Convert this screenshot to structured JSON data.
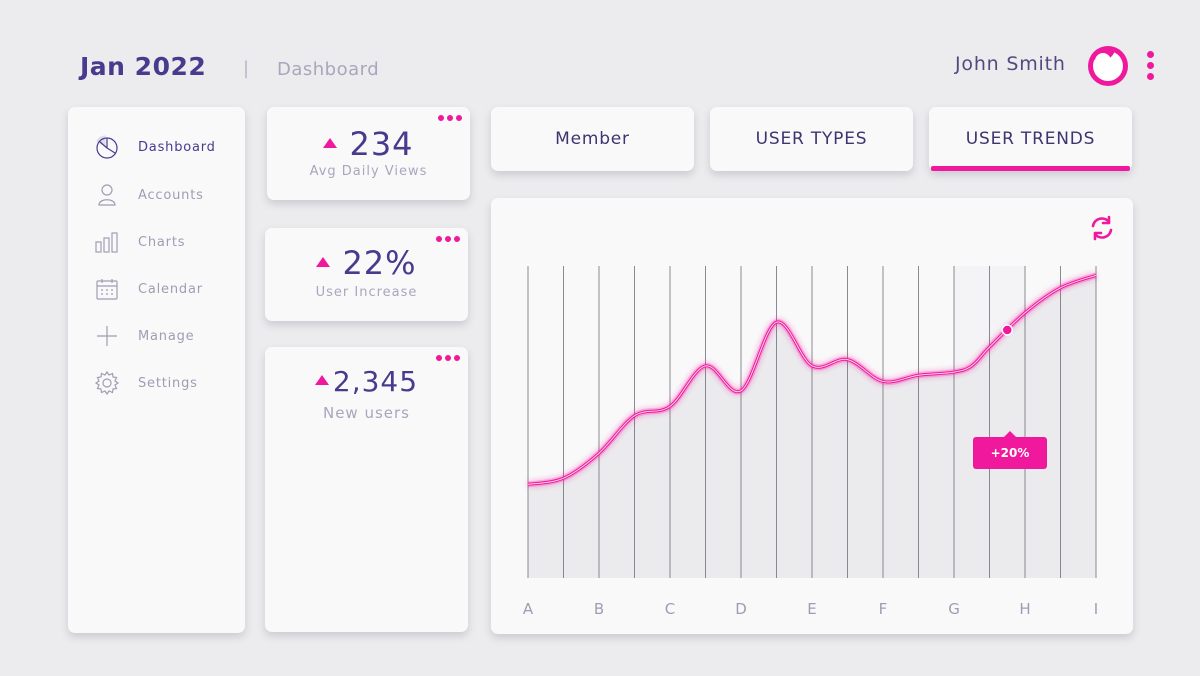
{
  "header": {
    "title": "Jan 2022",
    "separator": "|",
    "page": "Dashboard",
    "user_name": "John Smith"
  },
  "sidebar": {
    "items": [
      {
        "label": "Dashboard",
        "icon": "pie-chart-icon",
        "active": true
      },
      {
        "label": "Accounts",
        "icon": "user-icon",
        "active": false
      },
      {
        "label": "Charts",
        "icon": "bar-chart-icon",
        "active": false
      },
      {
        "label": "Calendar",
        "icon": "calendar-icon",
        "active": false
      },
      {
        "label": "Manage",
        "icon": "plus-icon",
        "active": false
      },
      {
        "label": "Settings",
        "icon": "gear-icon",
        "active": false
      }
    ]
  },
  "stats": [
    {
      "value": "234",
      "label": "Avg Daily Views",
      "trend": "up"
    },
    {
      "value": "22%",
      "label": "User Increase",
      "trend": "up"
    },
    {
      "value": "2,345",
      "label": "New users",
      "trend": "up"
    }
  ],
  "tabs": [
    {
      "label": "Member",
      "active": false
    },
    {
      "label": "USER TYPES",
      "active": false
    },
    {
      "label": "USER TRENDS",
      "active": true
    }
  ],
  "colors": {
    "accent": "#f0189c",
    "primary_text": "#4a3a8e",
    "muted_text": "#a9a6bd",
    "background": "#ececee",
    "card": "#f9f9fa"
  },
  "chart_data": {
    "type": "line",
    "title": "",
    "categories": [
      "A",
      "B",
      "C",
      "D",
      "E",
      "F",
      "G",
      "H",
      "I"
    ],
    "x": [
      0,
      0.5,
      1,
      1.5,
      2,
      2.5,
      3,
      3.5,
      4,
      4.5,
      5,
      5.5,
      6,
      6.25,
      6.5,
      7,
      7.5,
      8
    ],
    "values": [
      30,
      32,
      40,
      52,
      55,
      68,
      60,
      82,
      68,
      70,
      63,
      65,
      66,
      68,
      74,
      85,
      93,
      97
    ],
    "ylim": [
      0,
      100
    ],
    "highlight_range": [
      "G",
      "H"
    ],
    "highlight_point": {
      "x": 6.75,
      "label": "+20%"
    },
    "grid": "vertical",
    "xlabel": "",
    "ylabel": ""
  }
}
